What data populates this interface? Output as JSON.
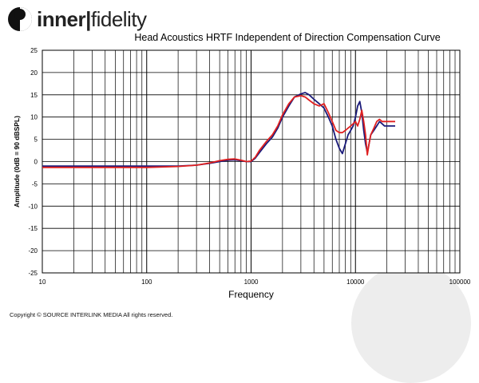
{
  "brand": {
    "logo_bold": "inner",
    "logo_sep": "|",
    "logo_thin": "fidelity"
  },
  "copyright": "Copyright © SOURCE INTERLINK MEDIA All rights reserved.",
  "chart_data": {
    "type": "line",
    "title": "Head Acoustics HRTF Independent of Direction Compensation Curve",
    "xlabel": "Frequency",
    "ylabel": "Amplitude (0dB = 90 dBSPL)",
    "xscale": "log",
    "xlim": [
      10,
      100000
    ],
    "ylim": [
      -25,
      25
    ],
    "x_ticks": [
      10,
      100,
      1000,
      10000,
      100000
    ],
    "x_tick_labels": [
      "10",
      "100",
      "1000",
      "10000",
      "100000"
    ],
    "y_ticks": [
      25,
      20,
      15,
      10,
      5,
      0,
      -5,
      -10,
      -15,
      -20,
      -25
    ],
    "y_tick_labels": [
      "25",
      "20",
      "15",
      "10",
      "5",
      "0",
      "-5",
      "-10",
      "-15",
      "-20",
      "-25"
    ],
    "grid": true,
    "series": [
      {
        "color": "#1a1a7a",
        "x": [
          10,
          50,
          100,
          200,
          300,
          400,
          500,
          600,
          700,
          800,
          900,
          1000,
          1100,
          1200,
          1400,
          1600,
          1800,
          2000,
          2300,
          2600,
          3000,
          3300,
          3600,
          4000,
          4500,
          5000,
          5500,
          6000,
          6500,
          7000,
          7500,
          8000,
          8500,
          9000,
          9500,
          10000,
          10500,
          11000,
          11500,
          12000,
          12500,
          13000,
          13500,
          14000,
          15000,
          16000,
          17000,
          18000,
          19000,
          20000,
          22000,
          24000
        ],
        "y": [
          -1,
          -1,
          -1,
          -1,
          -0.8,
          -0.4,
          0.0,
          0.3,
          0.4,
          0.2,
          0.0,
          0.0,
          0.8,
          2.0,
          4.0,
          5.5,
          7.5,
          10.0,
          12.5,
          14.5,
          15.2,
          15.5,
          15.0,
          14.0,
          13.0,
          12.0,
          10.0,
          8.0,
          5.0,
          3.0,
          1.8,
          4.0,
          6.0,
          7.0,
          8.0,
          10.0,
          12.5,
          13.5,
          11.0,
          7.0,
          4.0,
          2.0,
          4.0,
          6.0,
          7.0,
          8.0,
          9.0,
          8.5,
          8.0,
          8.0,
          8.0,
          8.0
        ]
      },
      {
        "color": "#e02020",
        "x": [
          10,
          50,
          100,
          200,
          300,
          400,
          500,
          600,
          700,
          800,
          900,
          1000,
          1100,
          1200,
          1400,
          1600,
          1800,
          2000,
          2300,
          2600,
          3000,
          3300,
          3600,
          4000,
          4500,
          5000,
          5500,
          6000,
          6500,
          7000,
          7500,
          8000,
          8500,
          9000,
          9500,
          10000,
          10500,
          11000,
          11500,
          12000,
          12500,
          13000,
          13500,
          14000,
          15000,
          16000,
          17000,
          18000,
          19000,
          20000,
          22000,
          24000
        ],
        "y": [
          -1.3,
          -1.3,
          -1.3,
          -1.1,
          -0.8,
          -0.3,
          0.2,
          0.5,
          0.6,
          0.3,
          0.0,
          0.1,
          1.0,
          2.5,
          4.5,
          6.0,
          8.0,
          10.5,
          13.0,
          14.5,
          14.8,
          14.5,
          13.8,
          13.0,
          12.5,
          13.0,
          11.0,
          9.0,
          7.0,
          6.5,
          6.5,
          7.0,
          7.5,
          8.0,
          8.5,
          9.0,
          8.0,
          9.5,
          11.5,
          9.0,
          6.0,
          1.5,
          4.0,
          6.0,
          7.5,
          9.0,
          9.5,
          9.0,
          9.0,
          9.0,
          9.0,
          9.0
        ]
      }
    ]
  }
}
